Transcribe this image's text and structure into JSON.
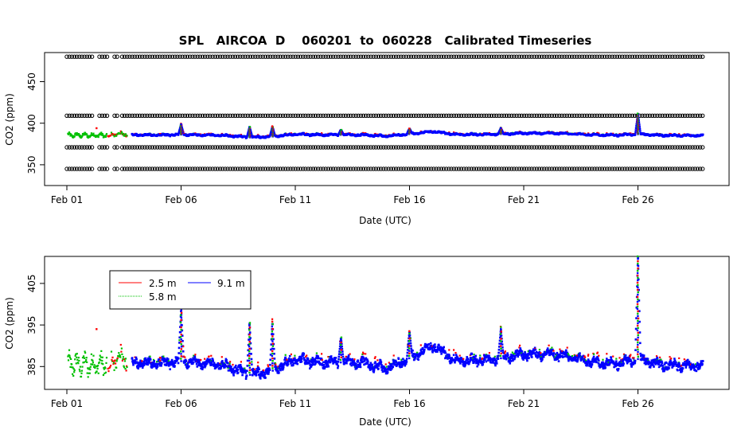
{
  "chart_data": [
    {
      "type": "scatter",
      "title": "SPL   AIRCOA  D    060201  to  060228   Calibrated Timeseries",
      "xlabel": "Date (UTC)",
      "ylabel": "CO2 (ppm)",
      "x_ticks": [
        "Feb 01",
        "Feb 06",
        "Feb 11",
        "Feb 16",
        "Feb 21",
        "Feb 26"
      ],
      "y_ticks": [
        350,
        400,
        450
      ],
      "xlim": [
        "2006-02-01",
        "2006-02-29"
      ],
      "ylim": [
        325,
        485
      ],
      "grid": false,
      "calibration_levels_ppm": [
        345,
        371,
        409,
        480
      ],
      "series_colors": {
        "2.5 m": "#ff0000",
        "5.8 m": "#00c000",
        "9.1 m": "#0000ff",
        "calibration": "#000000"
      }
    },
    {
      "type": "scatter",
      "title": "",
      "xlabel": "Date (UTC)",
      "ylabel": "CO2 (ppm)",
      "x_ticks": [
        "Feb 01",
        "Feb 06",
        "Feb 11",
        "Feb 16",
        "Feb 21",
        "Feb 26"
      ],
      "y_ticks": [
        385,
        395,
        405
      ],
      "xlim": [
        "2006-02-01",
        "2006-02-29"
      ],
      "ylim": [
        379.5,
        411.5
      ],
      "grid": false,
      "legend_position": "top-left",
      "series": [
        {
          "name": "2.5 m",
          "color": "#ff0000"
        },
        {
          "name": "5.8 m",
          "color": "#00c000"
        },
        {
          "name": "9.1 m",
          "color": "#0000ff"
        }
      ],
      "baseline_points": [
        [
          "2006-02-03",
          385.5
        ],
        [
          "2006-02-04",
          386.0
        ],
        [
          "2006-02-05",
          385.8
        ],
        [
          "2006-02-06",
          386.3
        ],
        [
          "2006-02-07",
          385.8
        ],
        [
          "2006-02-08",
          385.2
        ],
        [
          "2006-02-09",
          383.0
        ],
        [
          "2006-02-10",
          384.0
        ],
        [
          "2006-02-11",
          386.8
        ],
        [
          "2006-02-12",
          386.0
        ],
        [
          "2006-02-13",
          386.0
        ],
        [
          "2006-02-14",
          385.8
        ],
        [
          "2006-02-15",
          384.5
        ],
        [
          "2006-02-16",
          387.0
        ],
        [
          "2006-02-17",
          390.0
        ],
        [
          "2006-02-18",
          386.5
        ],
        [
          "2006-02-19",
          386.5
        ],
        [
          "2006-02-20",
          387.0
        ],
        [
          "2006-02-21",
          388.0
        ],
        [
          "2006-02-22",
          388.0
        ],
        [
          "2006-02-23",
          387.5
        ],
        [
          "2006-02-24",
          386.0
        ],
        [
          "2006-02-25",
          385.6
        ],
        [
          "2006-02-26",
          386.8
        ],
        [
          "2006-02-27",
          385.5
        ],
        [
          "2006-02-28",
          385.2
        ]
      ],
      "spikes": [
        [
          "2006-02-06",
          398.5
        ],
        [
          "2006-02-09",
          395.5
        ],
        [
          "2006-02-10",
          395.8
        ],
        [
          "2006-02-13",
          392.0
        ],
        [
          "2006-02-16",
          393.5
        ],
        [
          "2006-02-20",
          394.0
        ],
        [
          "2006-02-26",
          411.5
        ]
      ]
    }
  ]
}
